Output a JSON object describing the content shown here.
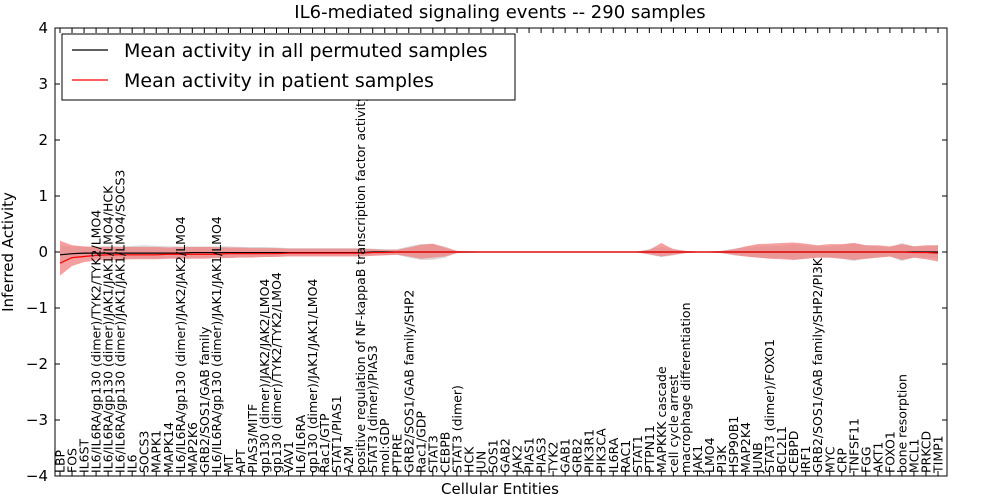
{
  "chart_data": {
    "type": "line",
    "title": "IL6-mediated signaling events -- 290 samples",
    "xlabel": "Cellular Entities",
    "ylabel": "Inferred Activity",
    "ylim": [
      -4,
      4
    ],
    "yticks": [
      4,
      3,
      2,
      1,
      0,
      -1,
      -2,
      -3,
      -4
    ],
    "ytick_labels": [
      "4",
      "3",
      "2",
      "1",
      "0",
      "−1",
      "−2",
      "−3",
      "−4"
    ],
    "legend": {
      "placement": "top-left",
      "entries": [
        {
          "label": "Mean activity in all permuted samples",
          "color": "#000000"
        },
        {
          "label": "Mean activity in patient samples",
          "color": "#ff0000"
        }
      ]
    },
    "colors": {
      "permuted_line": "#000000",
      "patient_line": "#ff0000",
      "permuted_band": "#bfbfbf",
      "patient_band": "#f08080"
    },
    "categories": [
      "LBP",
      "FOS",
      "IL6ST",
      "IL6/IL6RA/gp130 (dimer)/TYK2/TYK2/LMO4",
      "IL6/IL6RA/gp130 (dimer)/JAK1/JAK1/LMO4/HCK",
      "IL6/IL6RA/gp130 (dimer)/JAK1/JAK1/LMO4/SOCS3",
      "IL6",
      "SOCS3",
      "MAPK1",
      "MAPK14",
      "IL6/IL6RA/gp130 (dimer)/JAK2/JAK2/LMO4",
      "MAP2K6",
      "GRB2/SOS1/GAB family",
      "IL6/IL6RA/gp130 (dimer)/JAK1/JAK1/LMO4",
      "MT",
      "APT",
      "PIAS3/MITF",
      "gp130 (dimer)/JAK2/JAK2/LMO4",
      "gp130 (dimer)/TYK2/TYK2/LMO4",
      "VAV1",
      "IL6/IL6RA",
      "gp130 (dimer)/JAK1/JAK1/LMO4",
      "Rac1/GTP",
      "STAT1/PIAS1",
      "A2M",
      "positive regulation of NF-kappaB transcription factor activity",
      "STAT3 (dimer)/PIAS3",
      "mol:GDP",
      "PTPRE",
      "GRB2/SOS1/GAB family/SHP2",
      "Rac1/GDP",
      "STAT3",
      "CEBPB",
      "STAT3 (dimer)",
      "HCK",
      "JUN",
      "SOS1",
      "GAB2",
      "JAK2",
      "PIAS1",
      "PIAS3",
      "TYK2",
      "GAB1",
      "GRB2",
      "PIK3R1",
      "PIK3CA",
      "IL6RA",
      "RAC1",
      "STAT1",
      "PTPN11",
      "MAPKKK cascade",
      "cell cycle arrest",
      "macrophage differentiation",
      "JAK1",
      "LMO4",
      "PI3K",
      "HSP90B1",
      "MAP2K4",
      "JUNB",
      "STAT3 (dimer)/FOXO1",
      "BCL2L1",
      "CEBPD",
      "IRF1",
      "GRB2/SOS1/GAB family/SHP2/PI3K",
      "MYC",
      "CRP",
      "TNFSF11",
      "FGG",
      "AKT1",
      "FOXO1",
      "bone resorption",
      "MCL1",
      "PRKCD",
      "TIMP1"
    ],
    "series": [
      {
        "name": "Mean activity in all permuted samples",
        "values": [
          -0.05,
          -0.03,
          -0.02,
          -0.02,
          -0.02,
          -0.02,
          -0.02,
          -0.02,
          -0.02,
          -0.02,
          -0.02,
          -0.01,
          -0.01,
          -0.01,
          -0.01,
          -0.01,
          -0.01,
          -0.01,
          -0.01,
          -0.01,
          -0.01,
          -0.01,
          -0.01,
          -0.01,
          -0.01,
          -0.01,
          0,
          0,
          0,
          0,
          0,
          0,
          0,
          0,
          0,
          0,
          0,
          0,
          0,
          0,
          0,
          0,
          0,
          0,
          0,
          0,
          0,
          0,
          0,
          0,
          0,
          0,
          0,
          0,
          0,
          0,
          0,
          0,
          0,
          0,
          0,
          0,
          0,
          0,
          0,
          0,
          0,
          0,
          0,
          0,
          0,
          0,
          0,
          0
        ],
        "lower": [
          -0.2,
          -0.12,
          -0.1,
          -0.11,
          -0.11,
          -0.1,
          -0.12,
          -0.12,
          -0.12,
          -0.11,
          -0.11,
          -0.1,
          -0.1,
          -0.1,
          -0.1,
          -0.09,
          -0.09,
          -0.09,
          -0.08,
          -0.07,
          -0.07,
          -0.07,
          -0.07,
          -0.07,
          -0.07,
          -0.07,
          -0.06,
          -0.05,
          -0.05,
          -0.1,
          -0.14,
          -0.14,
          -0.1,
          -0.02,
          -0.02,
          -0.01,
          -0.01,
          -0.01,
          -0.01,
          -0.01,
          -0.01,
          -0.01,
          -0.01,
          -0.01,
          -0.01,
          -0.01,
          -0.01,
          -0.01,
          -0.01,
          -0.05,
          -0.09,
          -0.06,
          -0.02,
          -0.01,
          -0.01,
          -0.02,
          -0.06,
          -0.08,
          -0.1,
          -0.11,
          -0.11,
          -0.14,
          -0.12,
          -0.1,
          -0.1,
          -0.12,
          -0.16,
          -0.12,
          -0.1,
          -0.08,
          -0.16,
          -0.1,
          -0.1,
          -0.12
        ],
        "upper": [
          0.12,
          0.1,
          0.09,
          0.1,
          0.11,
          0.1,
          0.11,
          0.12,
          0.11,
          0.1,
          0.1,
          0.1,
          0.1,
          0.1,
          0.1,
          0.09,
          0.09,
          0.09,
          0.08,
          0.07,
          0.07,
          0.07,
          0.07,
          0.07,
          0.07,
          0.07,
          0.06,
          0.05,
          0.05,
          0.1,
          0.14,
          0.14,
          0.1,
          0.02,
          0.02,
          0.01,
          0.01,
          0.01,
          0.01,
          0.01,
          0.01,
          0.01,
          0.01,
          0.01,
          0.01,
          0.01,
          0.01,
          0.01,
          0.01,
          0.05,
          0.09,
          0.06,
          0.02,
          0.01,
          0.01,
          0.02,
          0.06,
          0.08,
          0.1,
          0.11,
          0.11,
          0.14,
          0.12,
          0.1,
          0.1,
          0.12,
          0.16,
          0.12,
          0.1,
          0.08,
          0.16,
          0.1,
          0.1,
          0.12
        ]
      },
      {
        "name": "Mean activity in patient samples",
        "values": [
          -0.2,
          -0.1,
          -0.08,
          -0.06,
          -0.05,
          -0.05,
          -0.05,
          -0.05,
          -0.05,
          -0.04,
          -0.04,
          -0.04,
          -0.04,
          -0.04,
          -0.03,
          -0.03,
          -0.03,
          -0.03,
          -0.03,
          -0.02,
          -0.02,
          -0.02,
          -0.02,
          -0.02,
          -0.02,
          -0.02,
          -0.01,
          -0.01,
          0,
          0,
          0,
          0,
          0,
          0,
          0,
          0,
          0,
          0,
          0,
          0,
          0,
          0,
          0,
          0,
          0,
          0,
          0,
          0,
          0,
          0,
          0,
          0,
          0,
          0,
          0,
          0,
          0,
          0,
          0,
          0,
          0,
          0,
          0,
          0,
          0,
          0,
          0,
          0,
          0,
          0,
          0,
          -0.01,
          -0.01,
          -0.02
        ],
        "lower": [
          -0.42,
          -0.25,
          -0.18,
          -0.15,
          -0.14,
          -0.14,
          -0.13,
          -0.13,
          -0.13,
          -0.12,
          -0.12,
          -0.12,
          -0.12,
          -0.11,
          -0.11,
          -0.1,
          -0.1,
          -0.09,
          -0.09,
          -0.08,
          -0.08,
          -0.08,
          -0.08,
          -0.08,
          -0.08,
          -0.08,
          -0.07,
          -0.06,
          -0.05,
          -0.08,
          -0.12,
          -0.1,
          -0.08,
          -0.02,
          -0.01,
          -0.01,
          -0.01,
          -0.01,
          -0.01,
          -0.01,
          -0.01,
          -0.01,
          -0.01,
          -0.01,
          -0.01,
          -0.01,
          -0.01,
          -0.01,
          -0.01,
          -0.04,
          -0.08,
          -0.05,
          -0.02,
          -0.01,
          -0.01,
          -0.02,
          -0.05,
          -0.08,
          -0.1,
          -0.12,
          -0.13,
          -0.14,
          -0.12,
          -0.1,
          -0.1,
          -0.12,
          -0.14,
          -0.12,
          -0.1,
          -0.08,
          -0.14,
          -0.1,
          -0.13,
          -0.17
        ],
        "upper": [
          0.2,
          0.12,
          0.1,
          0.09,
          0.09,
          0.09,
          0.09,
          0.09,
          0.09,
          0.08,
          0.09,
          0.09,
          0.09,
          0.09,
          0.08,
          0.08,
          0.07,
          0.07,
          0.07,
          0.06,
          0.06,
          0.06,
          0.06,
          0.06,
          0.06,
          0.06,
          0.05,
          0.04,
          0.04,
          0.08,
          0.13,
          0.15,
          0.08,
          0.02,
          0.01,
          0.01,
          0.01,
          0.01,
          0.01,
          0.01,
          0.01,
          0.01,
          0.01,
          0.01,
          0.01,
          0.01,
          0.01,
          0.01,
          0.01,
          0.04,
          0.16,
          0.05,
          0.02,
          0.01,
          0.01,
          0.02,
          0.05,
          0.1,
          0.14,
          0.15,
          0.16,
          0.17,
          0.15,
          0.12,
          0.14,
          0.14,
          0.16,
          0.12,
          0.12,
          0.1,
          0.14,
          0.1,
          0.12,
          0.12
        ]
      }
    ]
  }
}
